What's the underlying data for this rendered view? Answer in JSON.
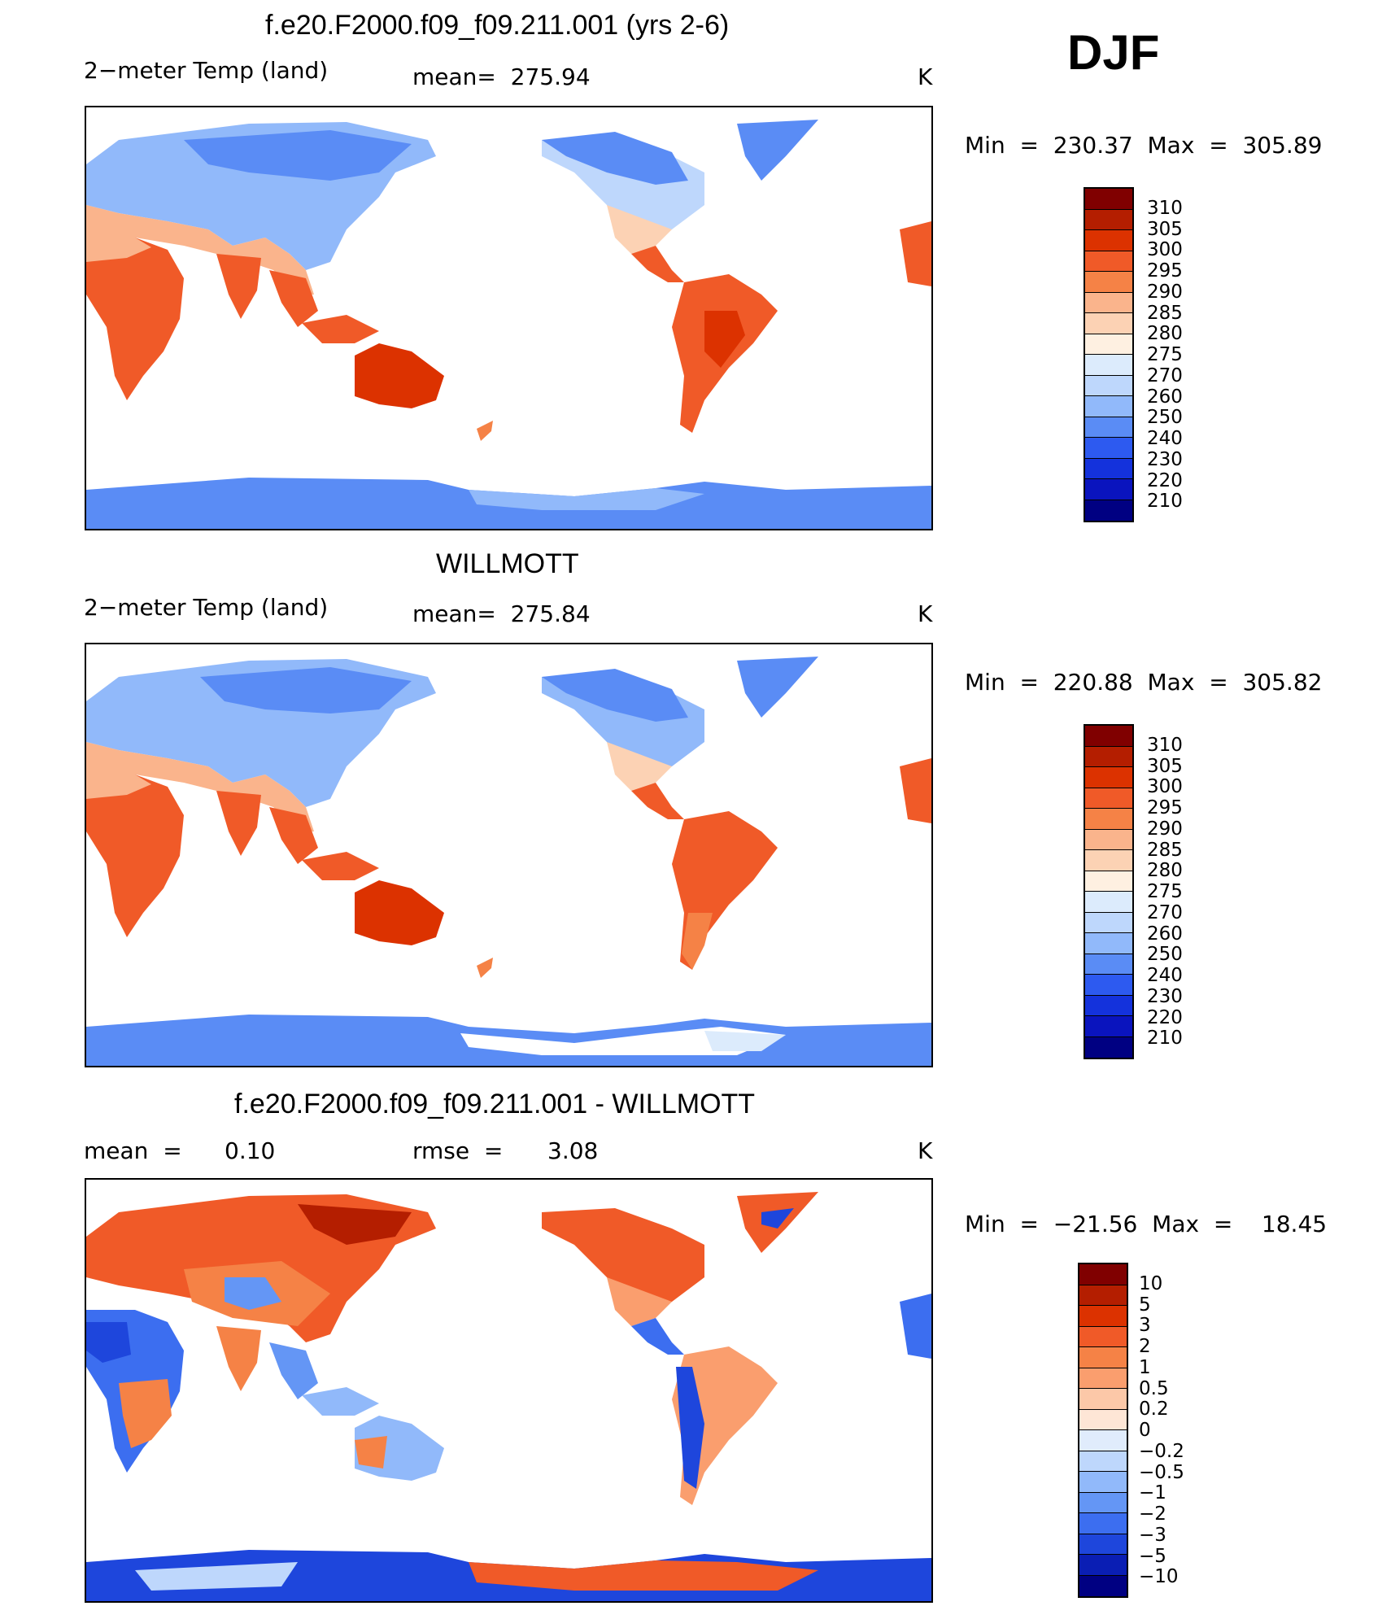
{
  "season": "DJF",
  "panels": [
    {
      "title": "f.e20.F2000.f09_f09.211.001 (yrs 2-6)",
      "left_label": "2−meter Temp (land)",
      "center_label": "mean=  275.94",
      "units": "K",
      "minmax": "Min  =  230.37  Max  =  305.89",
      "palette": "abs",
      "ticks": [
        "310",
        "305",
        "300",
        "295",
        "290",
        "285",
        "280",
        "275",
        "270",
        "260",
        "250",
        "240",
        "230",
        "220",
        "210"
      ]
    },
    {
      "title": "WILLMOTT",
      "left_label": "2−meter Temp (land)",
      "center_label": "mean=  275.84",
      "units": "K",
      "minmax": "Min  =  220.88  Max  =  305.82",
      "palette": "abs",
      "ticks": [
        "310",
        "305",
        "300",
        "295",
        "290",
        "285",
        "280",
        "275",
        "270",
        "260",
        "250",
        "240",
        "230",
        "220",
        "210"
      ]
    },
    {
      "title": "f.e20.F2000.f09_f09.211.001 - WILLMOTT",
      "left_label": "mean  =",
      "left_value": "0.10",
      "center_label": "rmse  =",
      "center_value": "3.08",
      "units": "K",
      "minmax": "Min  =  −21.56  Max  =    18.45",
      "palette": "diff",
      "ticks": [
        "10",
        "5",
        "3",
        "2",
        "1",
        "0.5",
        "0.2",
        "0",
        "−0.2",
        "−0.5",
        "−1",
        "−2",
        "−3",
        "−5",
        "−10"
      ]
    }
  ],
  "colors": {
    "abs": [
      "#800000",
      "#b41e00",
      "#dc3200",
      "#f05a28",
      "#f58246",
      "#fab48c",
      "#fcd2b4",
      "#fef0e1",
      "#dcebfc",
      "#bed7fc",
      "#91b9fa",
      "#5a8cf5",
      "#2d5af0",
      "#1432dc",
      "#0a14be",
      "#000082"
    ],
    "diff": [
      "#800000",
      "#b41e00",
      "#dc3200",
      "#f05a28",
      "#f58246",
      "#fa9e6e",
      "#fcc8a8",
      "#fee6d6",
      "#e0ecfc",
      "#bed7fc",
      "#91b9fa",
      "#6496f5",
      "#3c6ef0",
      "#1e46dc",
      "#0a1eb4",
      "#000082"
    ]
  },
  "chart_data": [
    {
      "type": "heatmap",
      "title": "f.e20.F2000.f09_f09.211.001 (yrs 2-6)",
      "variable": "2-meter Temp (land)",
      "units": "K",
      "mean": 275.94,
      "min": 230.37,
      "max": 305.89,
      "levels": [
        210,
        220,
        230,
        240,
        250,
        260,
        270,
        275,
        280,
        285,
        290,
        295,
        300,
        305,
        310
      ]
    },
    {
      "type": "heatmap",
      "title": "WILLMOTT",
      "variable": "2-meter Temp (land)",
      "units": "K",
      "mean": 275.84,
      "min": 220.88,
      "max": 305.82,
      "levels": [
        210,
        220,
        230,
        240,
        250,
        260,
        270,
        275,
        280,
        285,
        290,
        295,
        300,
        305,
        310
      ]
    },
    {
      "type": "heatmap",
      "title": "f.e20.F2000.f09_f09.211.001 - WILLMOTT",
      "units": "K",
      "mean": 0.1,
      "rmse": 3.08,
      "min": -21.56,
      "max": 18.45,
      "levels": [
        -10,
        -5,
        -3,
        -2,
        -1,
        -0.5,
        -0.2,
        0,
        0.2,
        0.5,
        1,
        2,
        3,
        5,
        10
      ]
    }
  ]
}
